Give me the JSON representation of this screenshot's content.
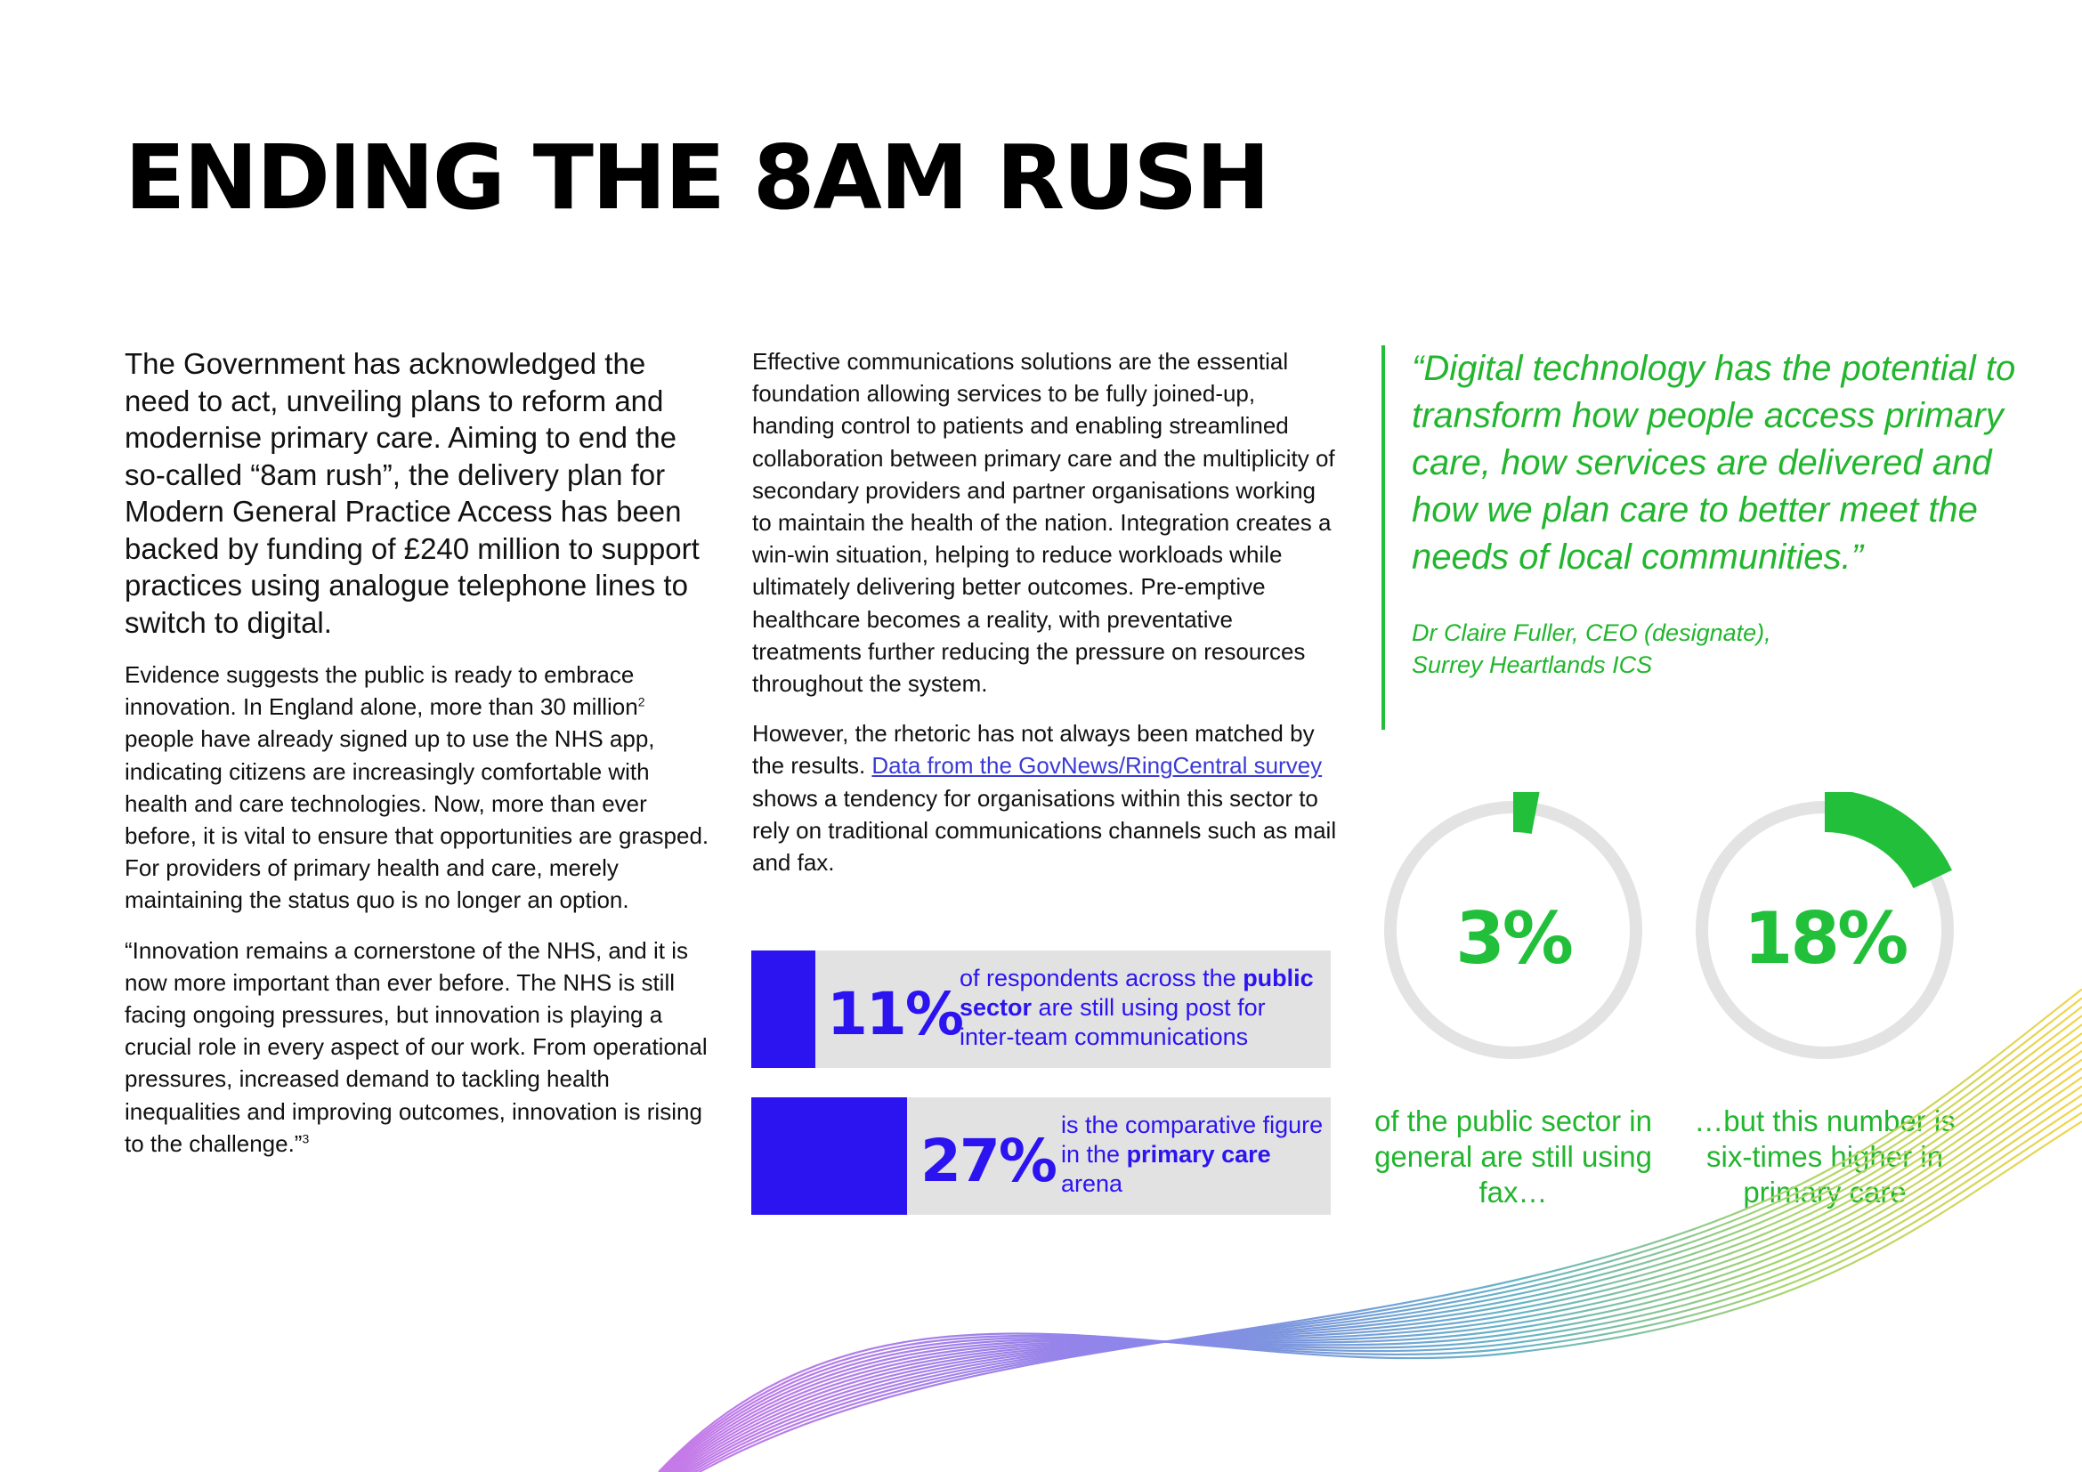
{
  "page": {
    "title": "ENDING THE 8AM RUSH"
  },
  "column1": {
    "lead": "The Government has acknowledged the need to act, unveiling plans to reform and modernise primary care. Aiming to end the so-called “8am rush”, the delivery plan for Modern General Practice Access has been backed by funding of £240 million to support practices using analogue telephone lines to switch to digital.",
    "para2_text": "Evidence suggests the public is ready to embrace innovation. In England alone, more than 30 million",
    "para2_sup": "2",
    "para2_rest": " people have already signed up to use the NHS app, indicating citizens are increasingly comfortable with health and care technologies. Now, more than ever before, it is vital to ensure that opportunities are grasped. For providers of primary health and care, merely maintaining the status quo is no longer an option.",
    "para3_text": "“Innovation remains a cornerstone of the NHS, and it is now more important than ever before. The NHS is still facing ongoing pressures, but innovation is playing a crucial role in every aspect of our work. From operational pressures, increased demand to tackling health inequalities and improving outcomes, innovation is rising to the challenge.”",
    "para3_sup": "3"
  },
  "column2": {
    "para1": "Effective communications solutions are the essential foundation allowing services to be fully joined-up, handing control to patients and enabling streamlined collaboration between primary care and the multiplicity of secondary providers and partner organisations working to maintain the health of the nation. Integration creates a win-win situation, helping to reduce workloads while ultimately delivering better outcomes. Pre-emptive healthcare becomes a reality, with preventative treatments further reducing the pressure on resources throughout the system.",
    "para2_start": "However, the rhetoric has not always been matched by the results. ",
    "para2_link": "Data from the GovNews/RingCentral survey",
    "para2_end": " shows a tendency for organisations within this sector to rely on traditional communications channels such as mail and fax."
  },
  "quote": {
    "text": "“Digital technology has the potential to transform how people access primary care, how services are delivered and how we plan care to better meet the needs of local communities.”",
    "attribution_line1": "Dr Claire Fuller, CEO (designate),",
    "attribution_line2": "Surrey Heartlands ICS"
  },
  "stats": [
    {
      "value": "11%",
      "fraction": 0.11,
      "desc_before": "of respondents across the ",
      "desc_bold": "public sector",
      "desc_after": " are still using post for inter-team communications"
    },
    {
      "value": "27%",
      "fraction": 0.27,
      "desc_before": "is the comparative figure in the ",
      "desc_bold": "primary care",
      "desc_after": " arena"
    }
  ],
  "donuts": [
    {
      "value": "3%",
      "fraction": 0.03,
      "caption": "of the public sector in general are still using fax…"
    },
    {
      "value": "18%",
      "fraction": 0.18,
      "caption": "…but this number is six-times higher in primary care"
    }
  ],
  "colors": {
    "accent_blue": "#2b14f0",
    "accent_green": "#22c03a",
    "stat_background": "#e2e2e2",
    "donut_track": "#e3e3e3"
  }
}
